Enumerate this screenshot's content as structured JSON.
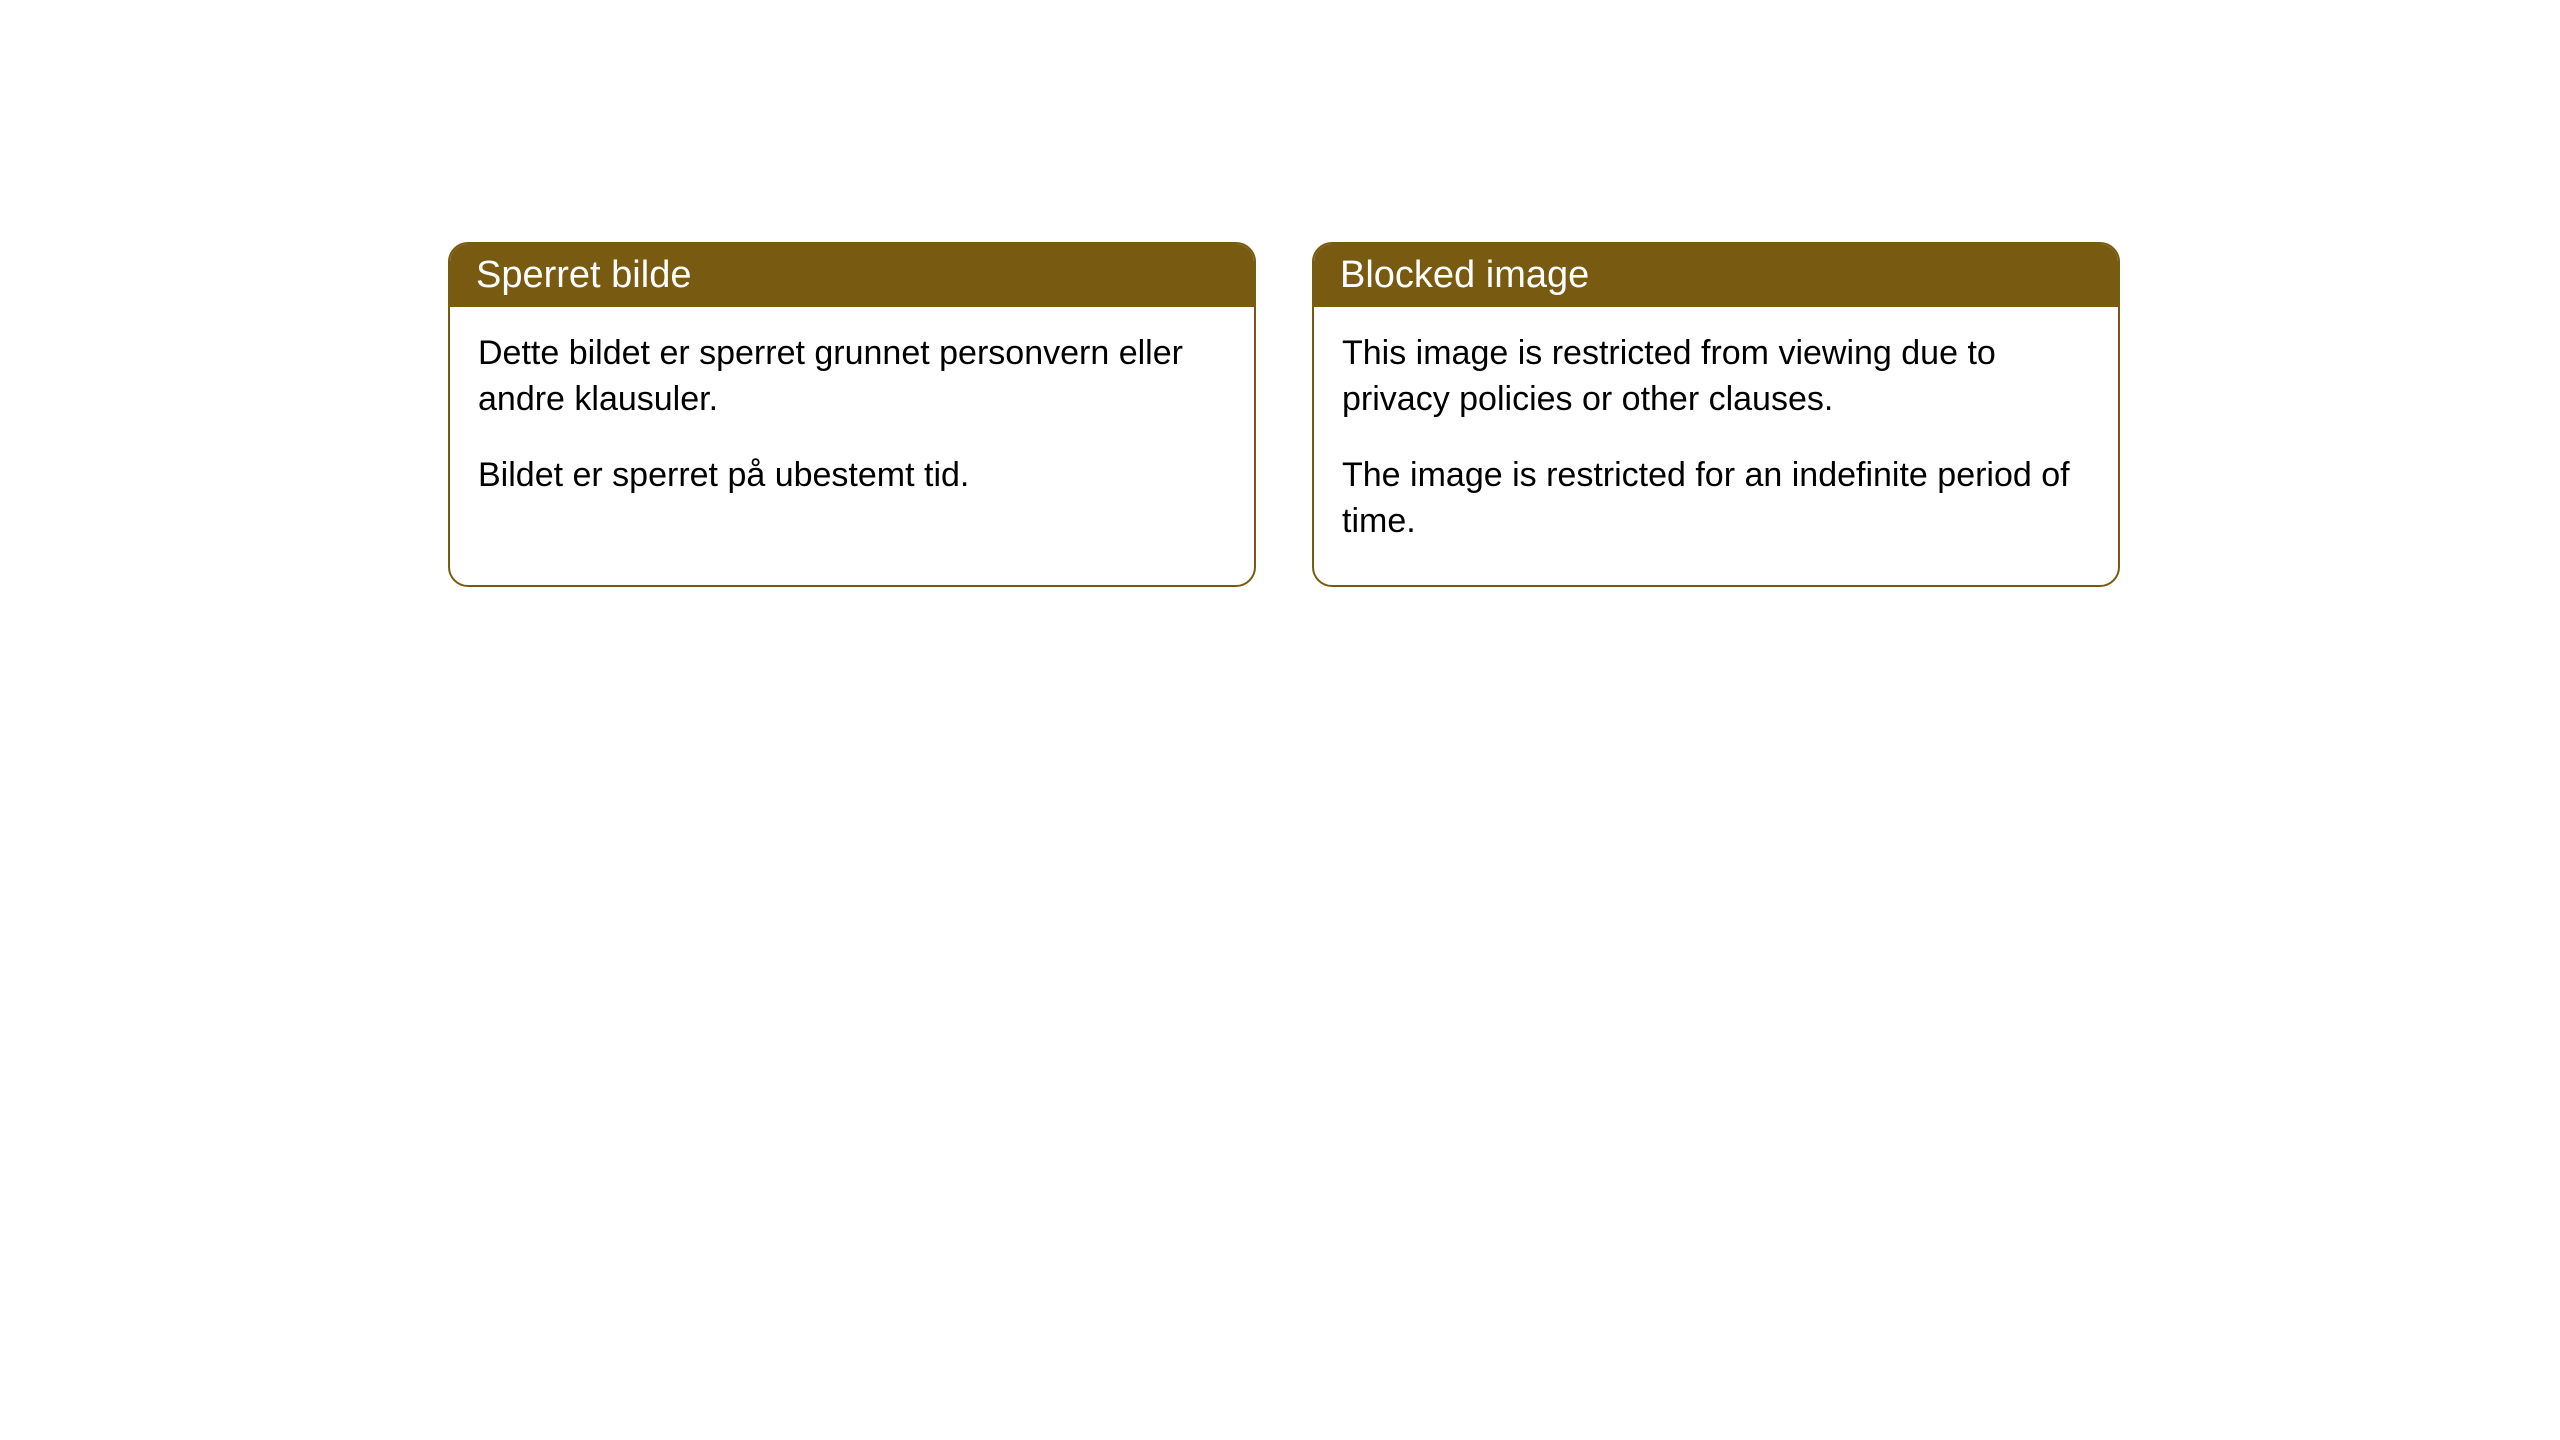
{
  "cards": [
    {
      "title": "Sperret bilde",
      "paragraph1": "Dette bildet er sperret grunnet personvern eller andre klausuler.",
      "paragraph2": "Bildet er sperret på ubestemt tid."
    },
    {
      "title": "Blocked image",
      "paragraph1": "This image is restricted from viewing due to privacy policies or other clauses.",
      "paragraph2": "The image is restricted for an indefinite period of time."
    }
  ],
  "colors": {
    "header_bg": "#785b11",
    "header_text": "#ffffff",
    "body_bg": "#ffffff",
    "body_text": "#000000",
    "border": "#785b11"
  }
}
